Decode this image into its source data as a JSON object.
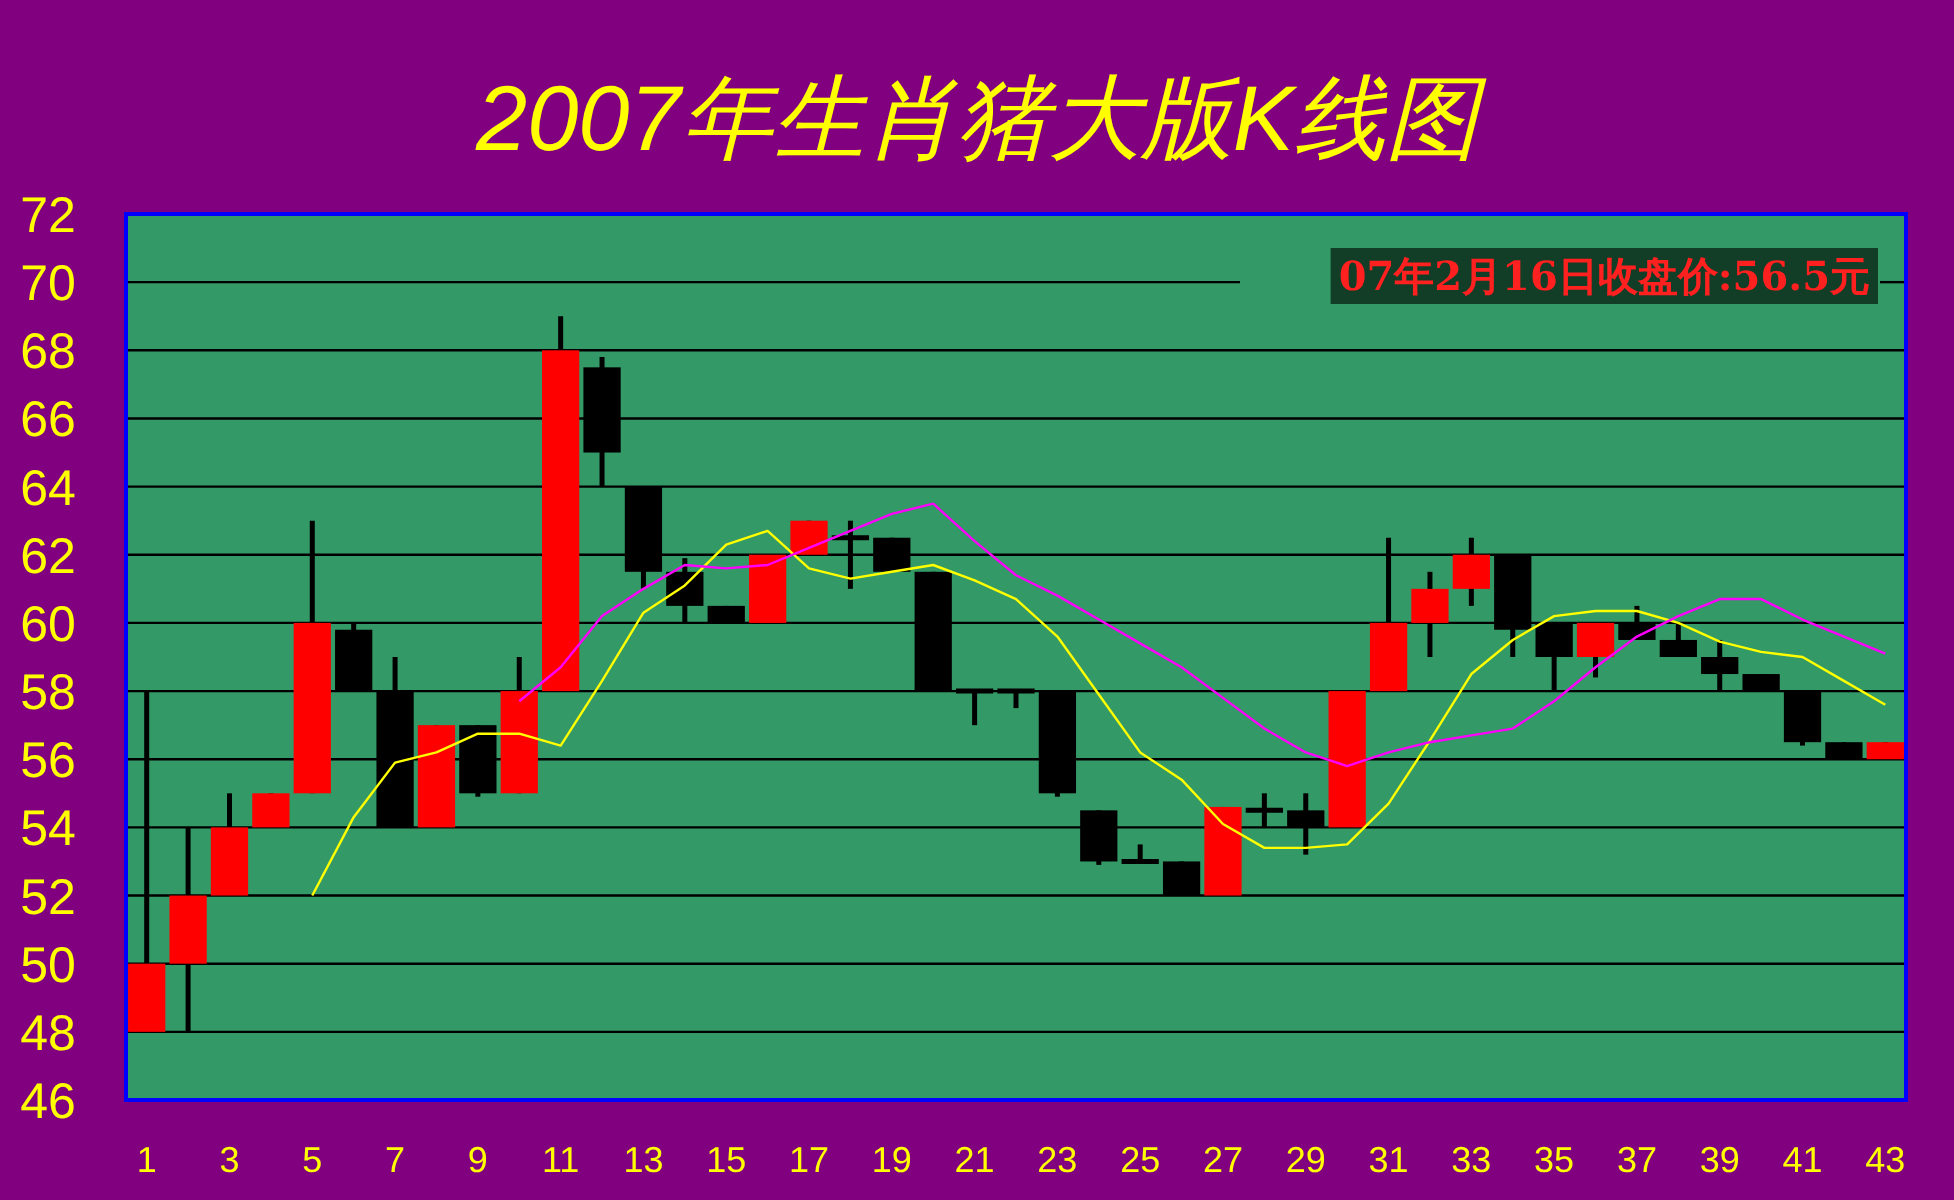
{
  "chart_data": {
    "type": "candlestick",
    "title": "2007年生肖猪大版K线图",
    "annotations": [
      "07年2月16日收盘价:56.5元"
    ],
    "x": [
      1,
      2,
      3,
      4,
      5,
      6,
      7,
      8,
      9,
      10,
      11,
      12,
      13,
      14,
      15,
      16,
      17,
      18,
      19,
      20,
      21,
      22,
      23,
      24,
      25,
      26,
      27,
      28,
      29,
      30,
      31,
      32,
      33,
      34,
      35,
      36,
      37,
      38,
      39,
      40,
      41,
      42,
      43
    ],
    "ohlc": [
      [
        48,
        58,
        48,
        50
      ],
      [
        50,
        54,
        48,
        52
      ],
      [
        52,
        55,
        52,
        54
      ],
      [
        54,
        55,
        54,
        55
      ],
      [
        55,
        63,
        55,
        60
      ],
      [
        59.8,
        60,
        58,
        58
      ],
      [
        58,
        59,
        54,
        54
      ],
      [
        54,
        57,
        54,
        57
      ],
      [
        57,
        57,
        54.9,
        55
      ],
      [
        55,
        59,
        55,
        58
      ],
      [
        58,
        69,
        58,
        68
      ],
      [
        67.5,
        67.8,
        64,
        65
      ],
      [
        64,
        64,
        61,
        61.5
      ],
      [
        61.5,
        61.9,
        60,
        60.5
      ],
      [
        60.5,
        60.5,
        60,
        60
      ],
      [
        60,
        62,
        60,
        62
      ],
      [
        62,
        63,
        62,
        63
      ],
      [
        62.5,
        63,
        61,
        62.5
      ],
      [
        62.5,
        62.5,
        61.5,
        61.5
      ],
      [
        61.5,
        61.5,
        58,
        58
      ],
      [
        58,
        58,
        57,
        58
      ],
      [
        58,
        58,
        57.5,
        58
      ],
      [
        58,
        58,
        54.9,
        55
      ],
      [
        54.5,
        54.5,
        52.9,
        53
      ],
      [
        53,
        53.5,
        53,
        53
      ],
      [
        53,
        53,
        52,
        52
      ],
      [
        52,
        54.6,
        52,
        54.6
      ],
      [
        54.5,
        55,
        54,
        54.5
      ],
      [
        54.5,
        55,
        53.2,
        54
      ],
      [
        54,
        58,
        54,
        58
      ],
      [
        58,
        62.5,
        58,
        60
      ],
      [
        60,
        61.5,
        59,
        61
      ],
      [
        61,
        62.5,
        60.5,
        62
      ],
      [
        62,
        62,
        59,
        59.8
      ],
      [
        60,
        60,
        58,
        59
      ],
      [
        59,
        60,
        58.4,
        60
      ],
      [
        60,
        60.5,
        59.5,
        59.5
      ],
      [
        59.5,
        60,
        59,
        59
      ],
      [
        59,
        59.5,
        58,
        58.5
      ],
      [
        58.5,
        58.5,
        58,
        58
      ],
      [
        58,
        58,
        56.4,
        56.5
      ],
      [
        56.5,
        56.5,
        56,
        56
      ],
      [
        56,
        56.5,
        56,
        56.5
      ]
    ],
    "colors": [
      "#ff0000",
      "#ff0000",
      "#ff0000",
      "#ff0000",
      "#ff0000",
      "#000000",
      "#000000",
      "#ff0000",
      "#000000",
      "#ff0000",
      "#ff0000",
      "#000000",
      "#000000",
      "#000000",
      "#000000",
      "#ff0000",
      "#ff0000",
      "#000000",
      "#000000",
      "#000000",
      "#000000",
      "#000000",
      "#000000",
      "#000000",
      "#000000",
      "#000000",
      "#ff0000",
      "#000000",
      "#000000",
      "#ff0000",
      "#ff0000",
      "#ff0000",
      "#ff0000",
      "#000000",
      "#000000",
      "#ff0000",
      "#000000",
      "#000000",
      "#000000",
      "#000000",
      "#000000",
      "#000000",
      "#ff0000"
    ],
    "series": [
      {
        "type": "line",
        "color": "#ffff00",
        "x": [
          5,
          6,
          7,
          8,
          9,
          10,
          11,
          12,
          13,
          14,
          15,
          16,
          17,
          18,
          19,
          20,
          21,
          22,
          23,
          24,
          25,
          26,
          27,
          28,
          29,
          30,
          31,
          32,
          33,
          34,
          35,
          36,
          37,
          38,
          39,
          40,
          41,
          42,
          43
        ],
        "values": [
          52,
          54.3,
          55.9,
          56.2,
          56.75,
          56.75,
          56.4,
          58.3,
          60.3,
          61.1,
          62.3,
          62.7,
          61.6,
          61.3,
          61.5,
          61.7,
          61.25,
          60.7,
          59.6,
          57.9,
          56.2,
          55.4,
          54.1,
          53.4,
          53.4,
          53.5,
          54.7,
          56.55,
          58.5,
          59.5,
          60.2,
          60.35,
          60.35,
          60,
          59.45,
          59.15,
          59,
          58.3,
          57.6
        ]
      },
      {
        "type": "line",
        "color": "#ff00ff",
        "x": [
          10,
          11,
          12,
          13,
          14,
          15,
          16,
          17,
          18,
          19,
          20,
          21,
          22,
          23,
          24,
          25,
          26,
          27,
          28,
          29,
          30,
          31,
          32,
          33,
          34,
          35,
          36,
          37,
          38,
          39,
          40,
          41,
          42,
          43
        ],
        "values": [
          57.7,
          58.7,
          60.2,
          61,
          61.7,
          61.6,
          61.7,
          62.2,
          62.7,
          63.2,
          63.5,
          62.4,
          61.4,
          60.8,
          60.1,
          59.4,
          58.7,
          57.8,
          56.9,
          56.2,
          55.8,
          56.2,
          56.5,
          56.7,
          56.9,
          57.7,
          58.7,
          59.6,
          60.2,
          60.7,
          60.7,
          60.1,
          59.6,
          59.1
        ]
      }
    ],
    "xlim": [
      0.5,
      43.5
    ],
    "xticks": [
      1,
      3,
      5,
      7,
      9,
      11,
      13,
      15,
      17,
      19,
      21,
      23,
      25,
      27,
      29,
      31,
      33,
      35,
      37,
      39,
      41,
      43
    ],
    "ylim": [
      46,
      72
    ],
    "yticks": [
      46,
      48,
      50,
      52,
      54,
      56,
      58,
      60,
      62,
      64,
      66,
      68,
      70,
      72
    ],
    "grid": "y"
  }
}
